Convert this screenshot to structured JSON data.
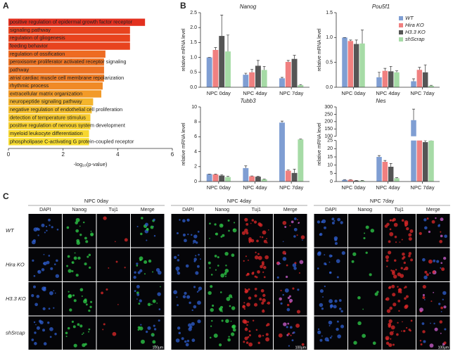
{
  "panel_labels": [
    "A",
    "B",
    "C"
  ],
  "chart_data": [
    {
      "type": "barh",
      "xlabel": "-log₁₀(p-value)",
      "categories": [
        "positive regulation of epidermal growth factor receptor",
        "signaling pathway",
        "regulation of gliogenesis",
        "feeding behavior",
        "regulation of ossification",
        "peroxisome proliferator activated receptor signaling",
        "pathway",
        "atrial cardiac muscle cell membrane repolarization",
        "rhythmic process",
        "extracellular matrix organization",
        "neuropeptide signaling pathway",
        "negative regulation of endothelial cell proliferation",
        "detection of temperature stimulus",
        "positive regulation of nervous system development",
        "myeloid leukocyte differentiation",
        "phospholipase C-activating G protein-coupled receptor"
      ],
      "values": [
        5.0,
        4.45,
        4.45,
        4.45,
        3.55,
        3.5,
        3.5,
        3.5,
        3.45,
        3.4,
        3.1,
        3.05,
        3.0,
        3.0,
        2.95,
        2.95
      ],
      "colors": [
        "#e3301f",
        "#e8431e",
        "#e8431e",
        "#e8431e",
        "#ee6b22",
        "#ee7424",
        "#ee7424",
        "#ef7d25",
        "#f08a26",
        "#f29a28",
        "#f4b42c",
        "#f5bf2d",
        "#f6c92e",
        "#f6cf2f",
        "#f7d72f",
        "#f8dd30"
      ],
      "xlim": [
        0,
        6
      ],
      "xticks": [
        0,
        2,
        4,
        6
      ]
    },
    {
      "type": "bar",
      "title": "Nanog",
      "ylabel": "relative mRNA level",
      "categories": [
        "NPC 0day",
        "NPC 4day",
        "NPC 7day"
      ],
      "series": [
        {
          "name": "WT",
          "color": "#7f9ed3",
          "values": [
            1.0,
            0.42,
            0.3
          ],
          "errors": [
            0.0,
            0.05,
            0.03
          ]
        },
        {
          "name": "Hira KO",
          "color": "#f08080",
          "values": [
            1.25,
            0.5,
            0.85
          ],
          "errors": [
            0.08,
            0.1,
            0.05
          ]
        },
        {
          "name": "H3.3 KO",
          "color": "#555555",
          "values": [
            1.72,
            0.72,
            0.95
          ],
          "errors": [
            0.7,
            0.18,
            0.12
          ]
        },
        {
          "name": "shScrap",
          "color": "#a6dba6",
          "values": [
            1.2,
            0.58,
            0.07
          ],
          "errors": [
            0.55,
            0.12,
            0.02
          ]
        }
      ],
      "ylim": [
        0,
        2.5
      ],
      "yticks": [
        {
          "value": 0,
          "label": "0.0"
        },
        {
          "value": 0.5,
          "label": "0.5"
        },
        {
          "value": 1,
          "label": "1.0"
        },
        {
          "value": 1.5,
          "label": "1.5"
        },
        {
          "value": 2,
          "label": "2.0"
        },
        {
          "value": 2.5,
          "label": "2.5"
        }
      ]
    },
    {
      "type": "bar",
      "title": "Pou5f1",
      "ylabel": "relative mRNA level",
      "legend": "top-right",
      "categories": [
        "NPC 0day",
        "NPC 4day",
        "NPC 7day"
      ],
      "series": [
        {
          "name": "WT",
          "color": "#7f9ed3",
          "values": [
            1.0,
            0.2,
            0.12
          ],
          "errors": [
            0.0,
            0.1,
            0.05
          ]
        },
        {
          "name": "Hira KO",
          "color": "#f08080",
          "values": [
            0.93,
            0.33,
            0.35
          ],
          "errors": [
            0.02,
            0.05,
            0.05
          ]
        },
        {
          "name": "H3.3 KO",
          "color": "#555555",
          "values": [
            0.87,
            0.32,
            0.3
          ],
          "errors": [
            0.08,
            0.1,
            0.15
          ]
        },
        {
          "name": "shScrap",
          "color": "#a6dba6",
          "values": [
            0.88,
            0.3,
            0.03
          ],
          "errors": [
            0.27,
            0.03,
            0.01
          ]
        }
      ],
      "ylim": [
        0,
        1.5
      ],
      "yticks": [
        {
          "value": 0,
          "label": "0.0"
        },
        {
          "value": 0.5,
          "label": "0.5"
        },
        {
          "value": 1,
          "label": "1.0"
        },
        {
          "value": 1.5,
          "label": "1.5"
        }
      ]
    },
    {
      "type": "bar",
      "title": "Tubb3",
      "ylabel": "relative mRNA level",
      "categories": [
        "NPC 0day",
        "NPC 4day",
        "NPC 7day"
      ],
      "series": [
        {
          "name": "WT",
          "color": "#7f9ed3",
          "values": [
            1.0,
            1.8,
            7.9
          ],
          "errors": [
            0.0,
            0.3,
            0.2
          ]
        },
        {
          "name": "Hira KO",
          "color": "#f08080",
          "values": [
            0.95,
            0.7,
            1.45
          ],
          "errors": [
            0.05,
            0.05,
            0.1
          ]
        },
        {
          "name": "H3.3 KO",
          "color": "#555555",
          "values": [
            0.8,
            0.65,
            1.15
          ],
          "errors": [
            0.1,
            0.05,
            0.5
          ]
        },
        {
          "name": "shScrap",
          "color": "#a6dba6",
          "values": [
            0.6,
            0.3,
            5.65
          ],
          "errors": [
            0.1,
            0.05,
            0.05
          ]
        }
      ],
      "ylim": [
        0,
        10
      ],
      "yticks": [
        0,
        2,
        4,
        6,
        8,
        10
      ]
    },
    {
      "type": "bar",
      "title": "Nes",
      "ylabel": "relative mRNA level",
      "categories": [
        "NPC 0day",
        "NPC 4day",
        "NPC 7day"
      ],
      "series": [
        {
          "name": "WT",
          "color": "#7f9ed3",
          "values": [
            1,
            15,
            210
          ],
          "errors": [
            0.2,
            0.8,
            75
          ]
        },
        {
          "name": "Hira KO",
          "color": "#f08080",
          "values": [
            1,
            12,
            75
          ],
          "errors": [
            0.2,
            0.8,
            10
          ]
        },
        {
          "name": "H3.3 KO",
          "color": "#555555",
          "values": [
            0.5,
            9,
            60
          ],
          "errors": [
            0.1,
            2,
            10
          ]
        },
        {
          "name": "shScrap",
          "color": "#a6dba6",
          "values": [
            0.5,
            2,
            70
          ],
          "errors": [
            0.1,
            0.3,
            3
          ]
        }
      ],
      "ylim": [
        0,
        300
      ],
      "ybreak": [
        25,
        100
      ],
      "yticks": [
        0,
        5,
        10,
        15,
        20,
        25,
        100,
        150,
        200,
        250,
        300
      ]
    }
  ],
  "microscopy": {
    "groups": [
      "NPC 0day",
      "NPC 4day",
      "NPC 7day"
    ],
    "channels": [
      "DAPI",
      "Nanog",
      "Tuj1",
      "Merge"
    ],
    "rows": [
      "WT",
      "Hira KO",
      "H3.3 KO",
      "shSrcap"
    ],
    "scale_bar": "100μm"
  }
}
